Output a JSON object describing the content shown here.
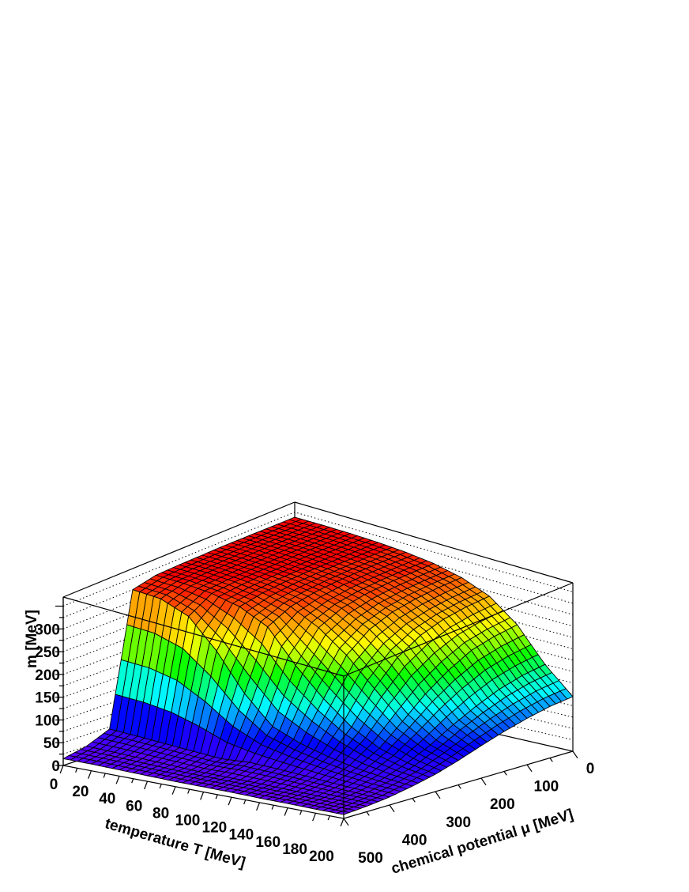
{
  "chart_data": {
    "type": "surface",
    "title": "",
    "x_axis": {
      "label": "temperature T [MeV]",
      "range": [
        0,
        200
      ],
      "ticks": [
        "0",
        "20",
        "40",
        "60",
        "80",
        "100",
        "120",
        "140",
        "160",
        "180",
        "200"
      ],
      "tick_values": [
        0,
        20,
        40,
        60,
        80,
        100,
        120,
        140,
        160,
        180,
        200
      ]
    },
    "y_axis": {
      "label": "chemical potential μ [MeV]",
      "range": [
        0,
        500
      ],
      "ticks": [
        "0",
        "100",
        "200",
        "300",
        "400",
        "500"
      ],
      "tick_values": [
        0,
        100,
        200,
        300,
        400,
        500
      ]
    },
    "z_axis": {
      "label": "m [MeV]",
      "range": [
        0,
        370
      ],
      "ticks": [
        "0",
        "50",
        "100",
        "150",
        "200",
        "250",
        "300"
      ],
      "tick_values": [
        0,
        50,
        100,
        150,
        200,
        250,
        300
      ]
    },
    "grid_T": [
      0,
      20,
      40,
      60,
      80,
      100,
      120,
      140,
      160,
      180,
      200
    ],
    "grid_mu": [
      0,
      50,
      100,
      150,
      200,
      250,
      300,
      350,
      400,
      450,
      500
    ],
    "values_m": [
      [
        340,
        340,
        340,
        340,
        339,
        338,
        336,
        325,
        45,
        25,
        15
      ],
      [
        340,
        340,
        340,
        340,
        339,
        338,
        335,
        322,
        42,
        24,
        15
      ],
      [
        339,
        339,
        339,
        338,
        337,
        335,
        330,
        300,
        38,
        22,
        14
      ],
      [
        337,
        337,
        336,
        335,
        333,
        328,
        318,
        240,
        34,
        20,
        13
      ],
      [
        333,
        333,
        332,
        330,
        325,
        315,
        290,
        160,
        30,
        18,
        12
      ],
      [
        326,
        325,
        323,
        318,
        308,
        285,
        220,
        100,
        35,
        18,
        12
      ],
      [
        313,
        311,
        306,
        297,
        278,
        240,
        160,
        75,
        33,
        18,
        12
      ],
      [
        290,
        286,
        278,
        262,
        232,
        180,
        110,
        58,
        30,
        17,
        11
      ],
      [
        245,
        238,
        226,
        200,
        165,
        120,
        75,
        45,
        26,
        16,
        11
      ],
      [
        175,
        168,
        155,
        135,
        110,
        80,
        55,
        36,
        23,
        15,
        10
      ],
      [
        120,
        115,
        105,
        92,
        76,
        58,
        42,
        30,
        20,
        14,
        10
      ]
    ],
    "colormap": "rainbow (violet low → red high)",
    "wall_grid": "dotted",
    "mesh_lines": "#000000"
  }
}
